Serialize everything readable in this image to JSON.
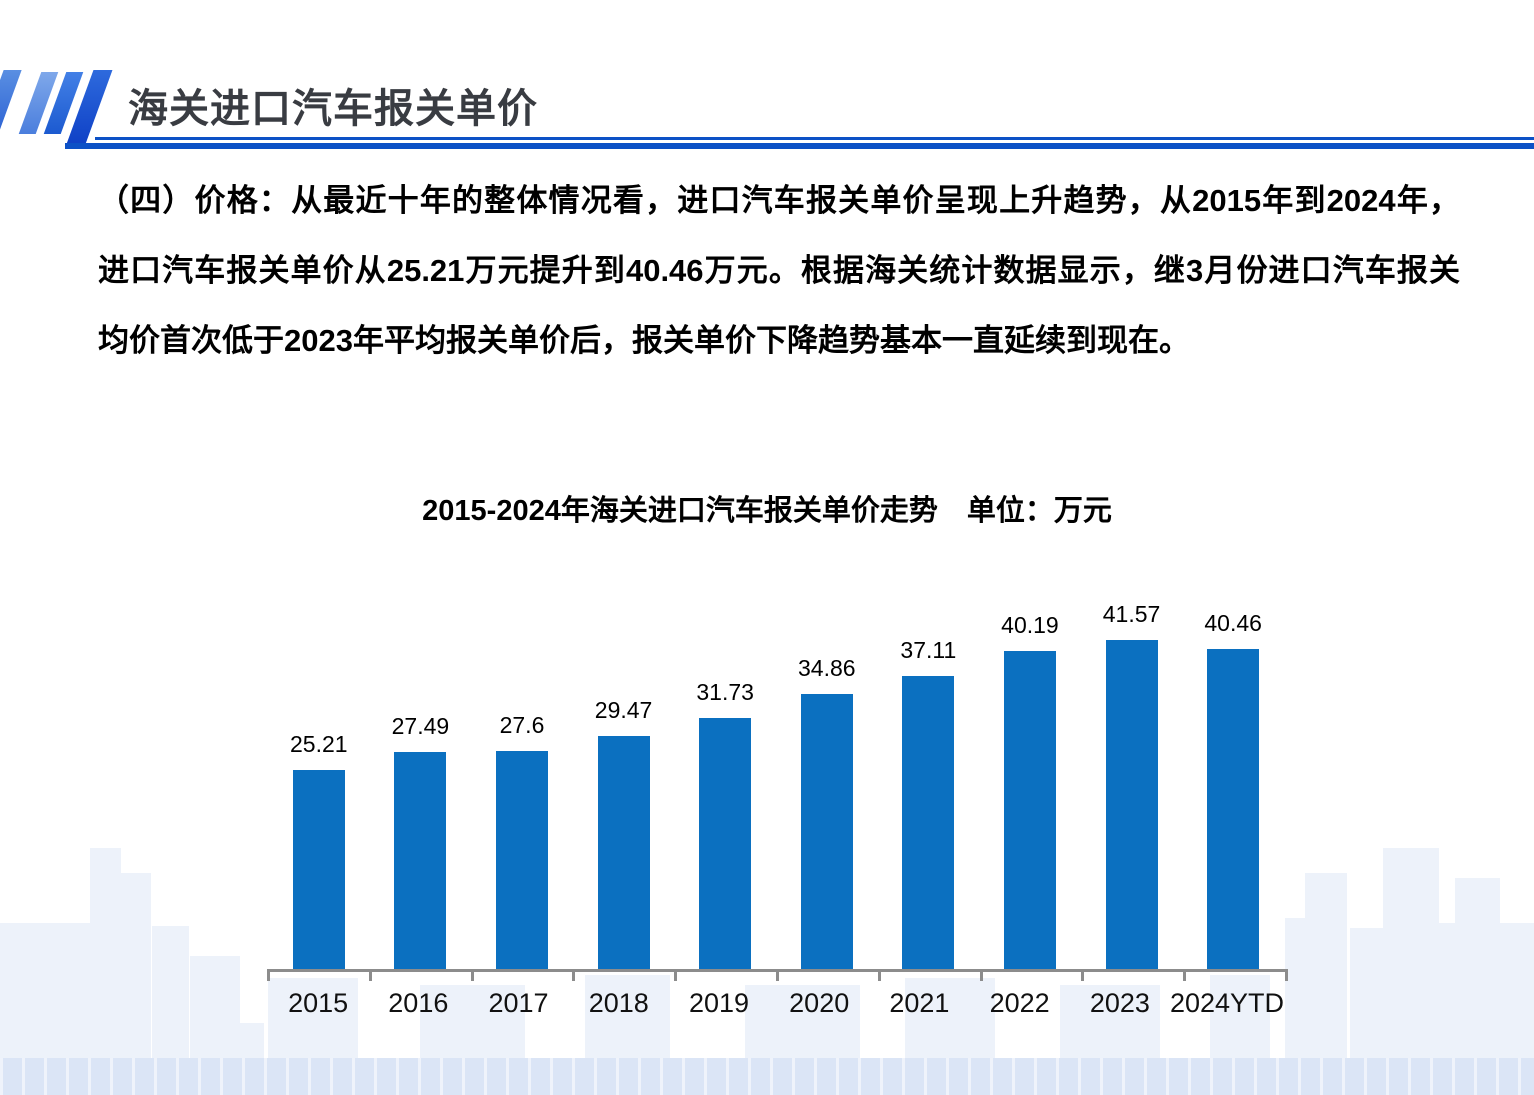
{
  "header": {
    "title": "海关进口汽车报关单价"
  },
  "paragraph": {
    "lines": [
      "（四）价格：从最近十年的整体情况看，进口汽车报关单价呈现上升趋势，从2015年到2024年，",
      "进口汽车报关单价从25.21万元提升到40.46万元。根据海关统计数据显示，继3月份进口汽车报关",
      "均价首次低于2023年平均报关单价后，报关单价下降趋势基本一直延续到现在。"
    ]
  },
  "chart_data": {
    "type": "bar",
    "title": "2015-2024年海关进口汽车报关单价走势　单位：万元",
    "categories": [
      "2015",
      "2016",
      "2017",
      "2018",
      "2019",
      "2020",
      "2021",
      "2022",
      "2023",
      "2024YTD"
    ],
    "values": [
      25.21,
      27.49,
      27.6,
      29.47,
      31.73,
      34.86,
      37.11,
      40.19,
      41.57,
      40.46
    ],
    "unit": "万元",
    "ylim": [
      0,
      45
    ],
    "grid": false,
    "legend": "none",
    "data_labels": true,
    "bar_color": "#0b70c0"
  },
  "colors": {
    "accent_rule": "#0c51c6",
    "bar": "#0b70c0",
    "axis": "#8c8c8c",
    "title_text": "#393c42",
    "skyline": "#edf2fa",
    "skyline_band": "#dbe5f6"
  }
}
